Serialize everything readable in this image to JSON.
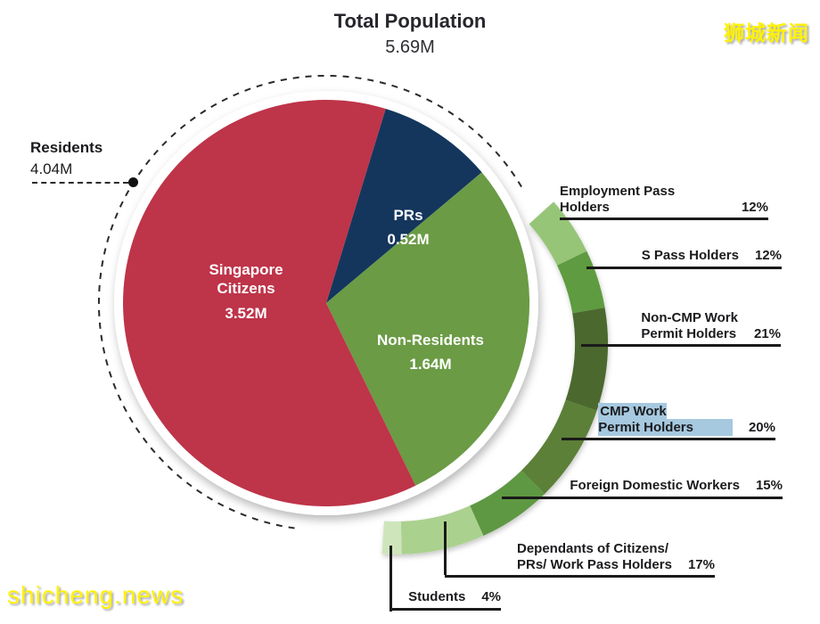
{
  "meta": {
    "title": "Total Population",
    "total": "5.69M",
    "watermark_top_right": "狮城新闻",
    "watermark_bottom_left": "shicheng.news"
  },
  "callout": {
    "label": "Residents",
    "value": "4.04M"
  },
  "chart_data": {
    "type": "pie",
    "title": "Total Population",
    "total_label": "5.69M",
    "total_value_millions": 5.69,
    "legend_position": "inside-slices",
    "slices": [
      {
        "label": "Singapore\nCitizens",
        "value": 3.52,
        "value_label": "3.52M",
        "color": "#BE3449"
      },
      {
        "label": "PRs",
        "value": 0.52,
        "value_label": "0.52M",
        "color": "#14365D"
      },
      {
        "label": "Non-Residents",
        "value": 1.64,
        "value_label": "1.64M",
        "color": "#6B9B45"
      }
    ],
    "residents_annotation": {
      "label": "Residents",
      "value": 4.04,
      "value_label": "4.04M"
    },
    "ring_breakdown_of": "Non-Residents",
    "ring": [
      {
        "label": "Employment Pass Holders",
        "pct": 12,
        "pct_label": "12%",
        "color": "#97C578",
        "highlighted": false
      },
      {
        "label": "S Pass Holders",
        "pct": 12,
        "pct_label": "12%",
        "color": "#5F9B40",
        "highlighted": false
      },
      {
        "label": "Non-CMP Work\nPermit Holders",
        "pct": 21,
        "pct_label": "21%",
        "color": "#4C682F",
        "highlighted": false
      },
      {
        "label": "CMP Work\nPermit Holders",
        "pct": 20,
        "pct_label": "20%",
        "color": "#5B8038",
        "highlighted": true
      },
      {
        "label": "Foreign Domestic Workers",
        "pct": 15,
        "pct_label": "15%",
        "color": "#5E9842",
        "highlighted": false
      },
      {
        "label": "Dependants of Citizens/\nPRs/ Work Pass Holders",
        "pct": 17,
        "pct_label": "17%",
        "color": "#ABD18F",
        "highlighted": false
      },
      {
        "label": "Students",
        "pct": 4,
        "pct_label": "4%",
        "color": "#CEE5BC",
        "highlighted": false
      }
    ]
  }
}
